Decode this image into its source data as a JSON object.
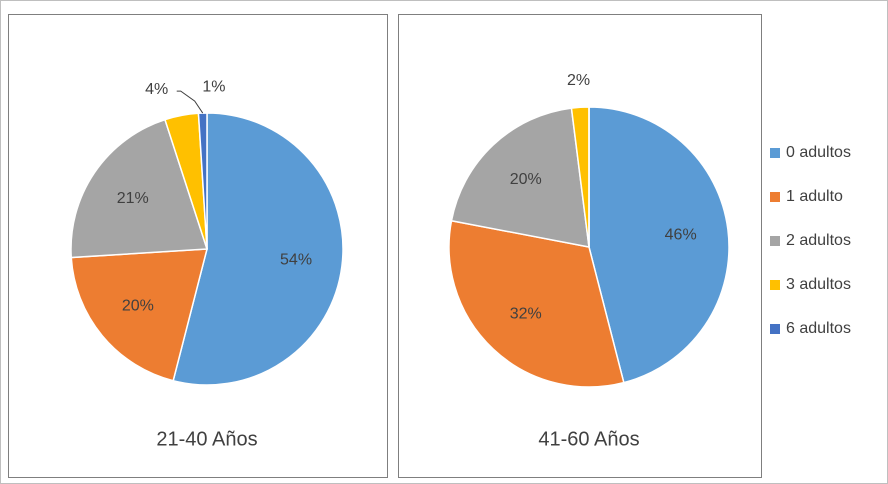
{
  "chart_data": [
    {
      "type": "pie",
      "title": "21-40 Años",
      "categories": [
        "0 adultos",
        "1 adulto",
        "2 adultos",
        "3 adultos",
        "6 adultos"
      ],
      "values": [
        54,
        20,
        21,
        4,
        1
      ],
      "value_labels": [
        "54%",
        "20%",
        "21%",
        "4%",
        "1%"
      ],
      "colors": [
        "#5b9bd5",
        "#ed7d31",
        "#a5a5a5",
        "#ffc000",
        "#4472c4"
      ]
    },
    {
      "type": "pie",
      "title": "41-60 Años",
      "categories": [
        "0 adultos",
        "1 adulto",
        "2 adultos",
        "3 adultos",
        "6 adultos"
      ],
      "values": [
        46,
        32,
        20,
        2,
        0
      ],
      "value_labels": [
        "46%",
        "32%",
        "20%",
        "2%",
        null
      ],
      "colors": [
        "#5b9bd5",
        "#ed7d31",
        "#a5a5a5",
        "#ffc000",
        "#4472c4"
      ]
    }
  ]
}
